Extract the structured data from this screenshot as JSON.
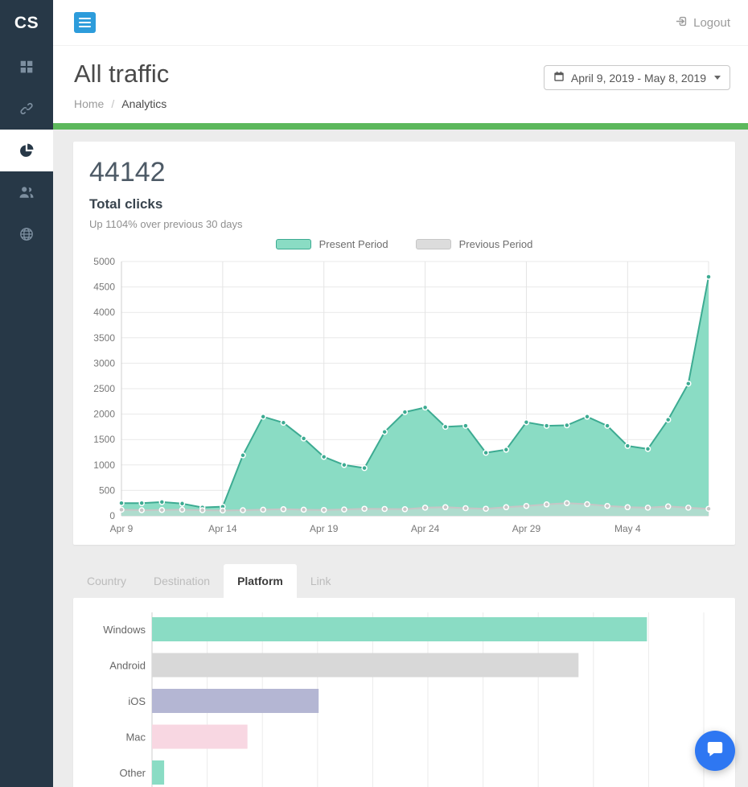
{
  "sidebar": {
    "logo": "CS",
    "items": [
      {
        "id": "dashboard",
        "icon": "grid-icon",
        "active": false
      },
      {
        "id": "links",
        "icon": "link-icon",
        "active": false
      },
      {
        "id": "analytics",
        "icon": "pie-chart-icon",
        "active": true
      },
      {
        "id": "users",
        "icon": "users-icon",
        "active": false
      },
      {
        "id": "domains",
        "icon": "globe-icon",
        "active": false
      }
    ]
  },
  "topbar": {
    "logout_label": "Logout"
  },
  "header": {
    "title": "All traffic",
    "breadcrumb": {
      "home": "Home",
      "separator": "/",
      "current": "Analytics"
    },
    "date_range": "April 9, 2019 - May 8, 2019"
  },
  "stats": {
    "total": "44142",
    "label": "Total clicks",
    "subtitle": "Up 1104% over previous 30 days"
  },
  "legend": {
    "present": "Present Period",
    "previous": "Previous Period"
  },
  "tabs": [
    {
      "label": "Country",
      "active": false
    },
    {
      "label": "Destination",
      "active": false
    },
    {
      "label": "Platform",
      "active": true
    },
    {
      "label": "Link",
      "active": false
    }
  ],
  "colors": {
    "sidebar_bg": "#273847",
    "menu_button": "#2d9cdb",
    "accent_strip": "#5cb85c",
    "present_line": "#3dab92",
    "present_fill": "#8adcc4",
    "previous_line": "#c6c6c6",
    "previous_fill": "#dcdcdc",
    "chat_button": "#2e77f2"
  },
  "chart_data": [
    {
      "type": "area",
      "title": "Total clicks",
      "legend_position": "top",
      "grid": true,
      "ylim": [
        0,
        5000
      ],
      "y_ticks": [
        0,
        500,
        1000,
        1500,
        2000,
        2500,
        3000,
        3500,
        4000,
        4500,
        5000
      ],
      "x_tick_labels": [
        "Apr 9",
        "Apr 14",
        "Apr 19",
        "Apr 24",
        "Apr 29",
        "May 4"
      ],
      "dates": [
        "Apr 9",
        "Apr 10",
        "Apr 11",
        "Apr 12",
        "Apr 13",
        "Apr 14",
        "Apr 15",
        "Apr 16",
        "Apr 17",
        "Apr 18",
        "Apr 19",
        "Apr 20",
        "Apr 21",
        "Apr 22",
        "Apr 23",
        "Apr 24",
        "Apr 25",
        "Apr 26",
        "Apr 27",
        "Apr 28",
        "Apr 29",
        "Apr 30",
        "May 1",
        "May 2",
        "May 3",
        "May 4",
        "May 5",
        "May 6",
        "May 7",
        "May 8"
      ],
      "series": [
        {
          "name": "Present Period",
          "color": "#3dab92",
          "fill": "#8adcc4",
          "fill_opacity": 1,
          "values": [
            250,
            250,
            270,
            240,
            165,
            180,
            1190,
            1950,
            1830,
            1520,
            1160,
            1000,
            940,
            1650,
            2040,
            2130,
            1750,
            1770,
            1240,
            1300,
            1840,
            1770,
            1780,
            1950,
            1770,
            1375,
            1315,
            1890,
            2600,
            4700
          ]
        },
        {
          "name": "Previous Period",
          "color": "#c6c6c6",
          "fill": "#dcdcdc",
          "fill_opacity": 0.45,
          "values": [
            120,
            110,
            115,
            120,
            110,
            105,
            110,
            120,
            130,
            120,
            115,
            125,
            140,
            135,
            130,
            160,
            170,
            150,
            140,
            170,
            195,
            225,
            250,
            230,
            195,
            170,
            160,
            185,
            160,
            140
          ]
        }
      ]
    },
    {
      "type": "bar",
      "orientation": "horizontal",
      "categories": [
        "Windows",
        "Android",
        "iOS",
        "Mac",
        "Other"
      ],
      "values": [
        8970,
        7730,
        3020,
        1730,
        220
      ],
      "colors": [
        "#8adcc4",
        "#d8d8d8",
        "#b4b6d3",
        "#f8d7e2",
        "#8adcc4"
      ],
      "xlim": [
        0,
        10000
      ],
      "grid_step": 1000,
      "xlabel": "",
      "ylabel": ""
    }
  ]
}
